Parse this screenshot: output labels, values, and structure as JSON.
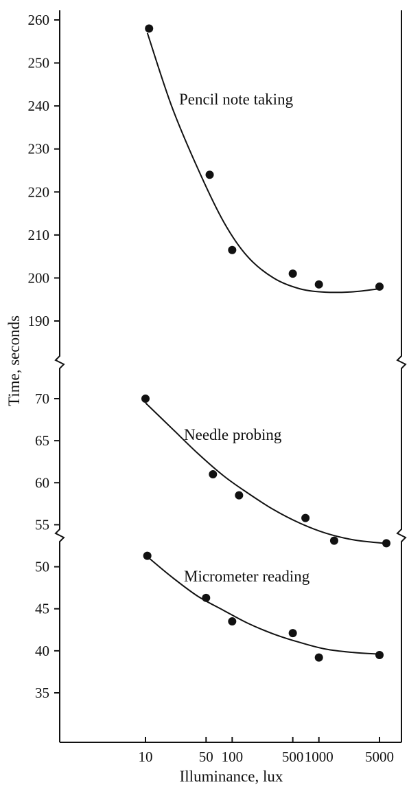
{
  "chart_data": {
    "type": "scatter",
    "xlabel": "Illuminance, lux",
    "ylabel": "Time, seconds",
    "x_scale": "log",
    "x_ticks": [
      10,
      50,
      100,
      500,
      1000,
      5000
    ],
    "x_tick_labels": [
      "10",
      "50",
      "100",
      "500",
      "1000",
      "5000"
    ],
    "y_axis_break": true,
    "upper_panel": {
      "y_ticks": [
        190,
        200,
        210,
        220,
        230,
        240,
        250,
        260
      ],
      "series": [
        {
          "name": "Pencil note taking",
          "points": [
            [
              11,
              258
            ],
            [
              55,
              224
            ],
            [
              100,
              206.5
            ],
            [
              500,
              201
            ],
            [
              1000,
              198.5
            ],
            [
              5000,
              198
            ]
          ],
          "fit": [
            [
              10.5,
              257
            ],
            [
              20,
              240
            ],
            [
              40,
              225.5
            ],
            [
              80,
              213
            ],
            [
              150,
              205
            ],
            [
              300,
              200
            ],
            [
              600,
              197.5
            ],
            [
              1200,
              196.7
            ],
            [
              2500,
              196.8
            ],
            [
              5000,
              197.5
            ]
          ]
        }
      ]
    },
    "lower_panel": {
      "y_ticks": [
        35,
        40,
        45,
        50,
        55,
        60,
        65,
        70
      ],
      "series": [
        {
          "name": "Needle probing",
          "points": [
            [
              10,
              70
            ],
            [
              60,
              61
            ],
            [
              120,
              58.5
            ],
            [
              700,
              55.8
            ],
            [
              1500,
              53.1
            ],
            [
              6000,
              52.8
            ]
          ],
          "fit": [
            [
              10,
              69.5
            ],
            [
              20,
              66.5
            ],
            [
              40,
              63.5
            ],
            [
              80,
              60.8
            ],
            [
              150,
              58.8
            ],
            [
              300,
              56.8
            ],
            [
              600,
              55.2
            ],
            [
              1200,
              54
            ],
            [
              2500,
              53.2
            ],
            [
              5500,
              52.8
            ]
          ]
        },
        {
          "name": "Micrometer reading",
          "points": [
            [
              10.5,
              51.3
            ],
            [
              50,
              46.3
            ],
            [
              100,
              43.5
            ],
            [
              500,
              42.1
            ],
            [
              1000,
              39.2
            ],
            [
              5000,
              39.5
            ]
          ],
          "fit": [
            [
              10.5,
              51.2
            ],
            [
              20,
              48.8
            ],
            [
              40,
              46.5
            ],
            [
              80,
              44.8
            ],
            [
              150,
              43.3
            ],
            [
              300,
              42
            ],
            [
              600,
              41
            ],
            [
              1200,
              40.2
            ],
            [
              2500,
              39.8
            ],
            [
              5000,
              39.6
            ]
          ]
        }
      ]
    }
  }
}
